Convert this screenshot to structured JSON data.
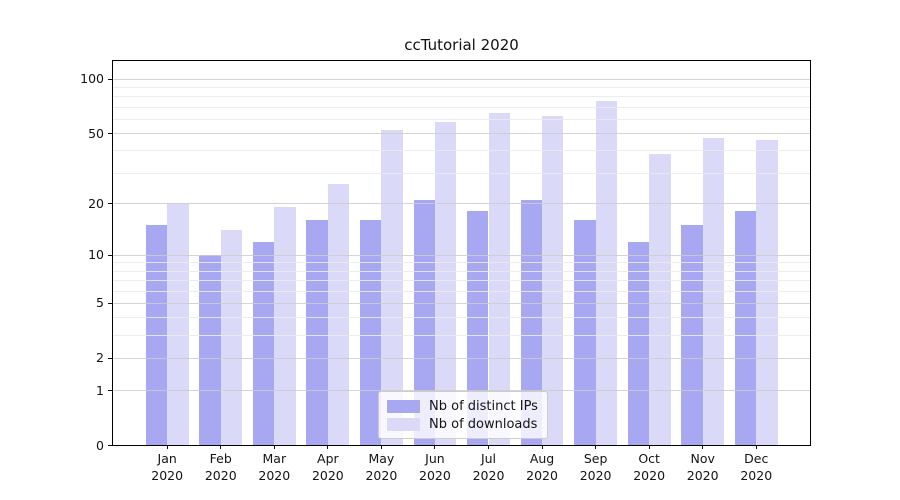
{
  "chart_data": {
    "type": "bar",
    "title": "ccTutorial 2020",
    "x_tick_months": [
      "Jan",
      "Feb",
      "Mar",
      "Apr",
      "May",
      "Jun",
      "Jul",
      "Aug",
      "Sep",
      "Oct",
      "Nov",
      "Dec"
    ],
    "x_tick_year": "2020",
    "series": [
      {
        "name": "Nb of distinct IPs",
        "key": "distinct-ips",
        "color": "#a7a7f2",
        "values": [
          15,
          10,
          12,
          16,
          16,
          21,
          18,
          21,
          16,
          12,
          15,
          18
        ]
      },
      {
        "name": "Nb of downloads",
        "key": "downloads",
        "color": "#dadaf8",
        "values": [
          20,
          14,
          19,
          26,
          52,
          58,
          65,
          62,
          75,
          38,
          47,
          46
        ]
      }
    ],
    "y_scale": "log1p",
    "y_ticks": [
      0,
      1,
      2,
      5,
      10,
      20,
      50,
      100
    ],
    "y_minor_gridlines": [
      3,
      4,
      6,
      7,
      8,
      9,
      30,
      40,
      60,
      70,
      80,
      90
    ],
    "ylim": [
      0,
      125
    ],
    "grid": true,
    "legend_position": "lower center",
    "axis_colors": {
      "spine": "#000000",
      "major_grid": "#cccccc",
      "minor_grid": "#eaeaea",
      "tick_label": "#141414"
    },
    "legend_style": {
      "border_color": "#cccccc",
      "background": "rgba(255,255,255,0.8)"
    }
  }
}
